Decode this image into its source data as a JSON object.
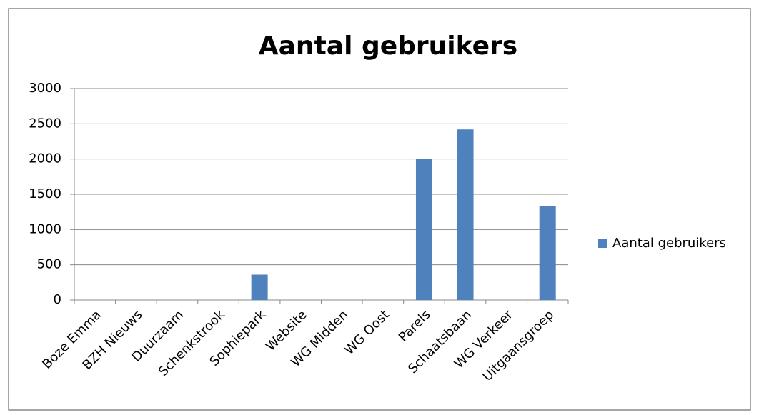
{
  "chart_data": {
    "type": "bar",
    "title": "Aantal gebruikers",
    "categories": [
      "Boze Emma",
      "BZH Nieuws",
      "Duurzaam",
      "Schenkstrook",
      "Sophiepark",
      "Website",
      "WG Midden",
      "WG Oost",
      "Parels",
      "Schaatsbaan",
      "WG Verkeer",
      "Uitgaansgroep"
    ],
    "series": [
      {
        "name": "Aantal gebruikers",
        "color": "#4f81bd",
        "values": [
          0,
          0,
          0,
          0,
          360,
          0,
          0,
          0,
          2000,
          2420,
          0,
          1330
        ]
      }
    ],
    "ylim": [
      0,
      3000
    ],
    "yticks": [
      0,
      500,
      1000,
      1500,
      2000,
      2500,
      3000
    ],
    "grid": true,
    "legend": "right"
  }
}
